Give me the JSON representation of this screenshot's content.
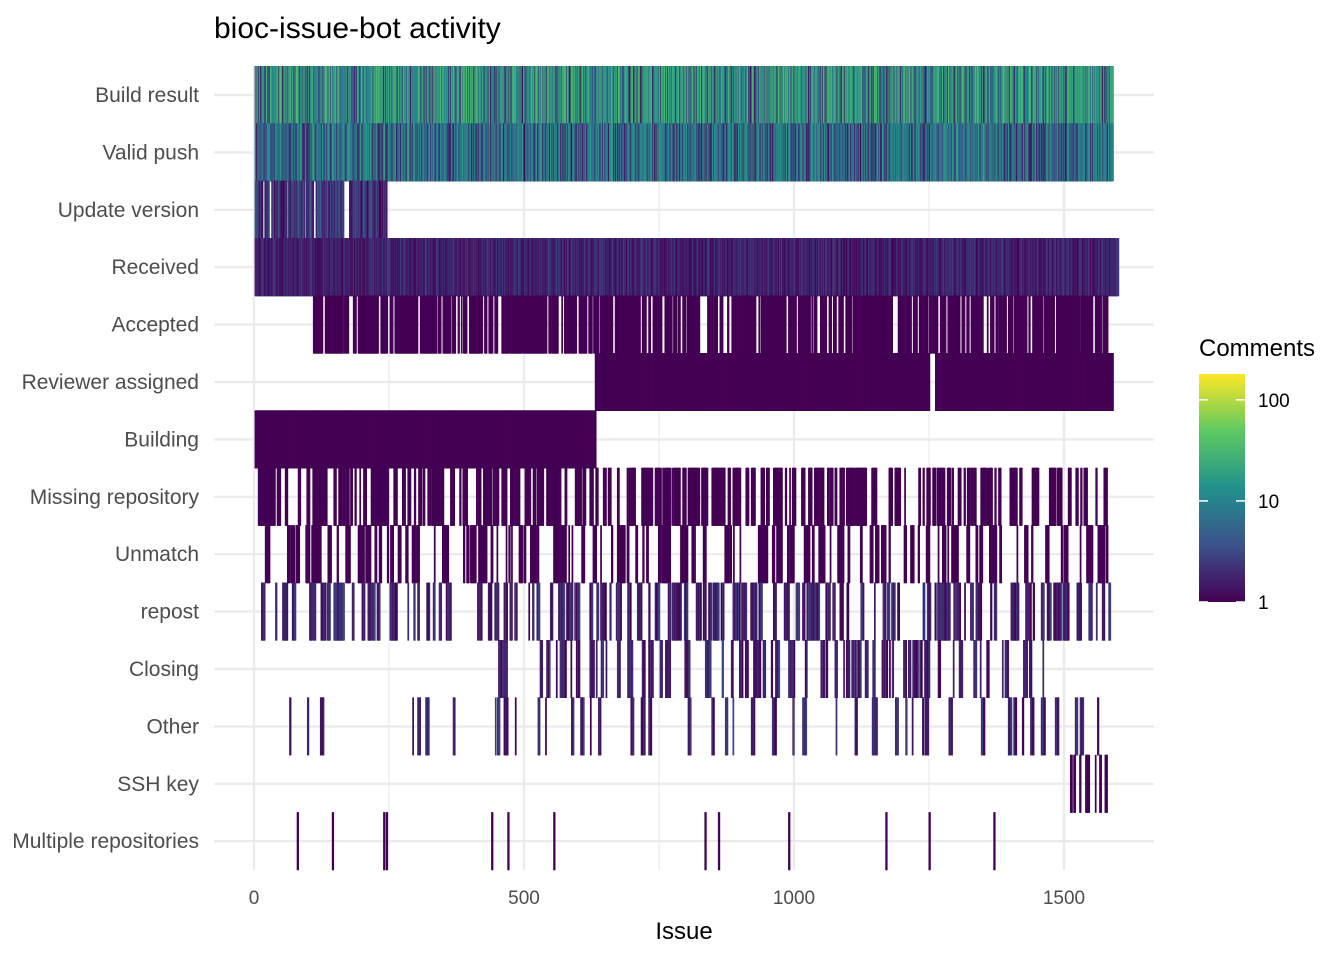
{
  "chart_data": {
    "type": "heatmap",
    "title": "bioc-issue-bot activity",
    "xlabel": "Issue",
    "ylabel": "",
    "xlim": [
      -70,
      1665
    ],
    "x_ticks": [
      0,
      500,
      1000,
      1500
    ],
    "grid": true,
    "legend": {
      "title": "Comments",
      "position": "right",
      "scale": "log10",
      "ticks": [
        1,
        10,
        100
      ],
      "range": [
        1,
        180
      ],
      "palette": [
        "#440154",
        "#3b528b",
        "#21918c",
        "#5ec962",
        "#fde725"
      ]
    },
    "categories": [
      "Build result",
      "Valid push",
      "Update version",
      "Received",
      "Accepted",
      "Reviewer assigned",
      "Building",
      "Missing repository",
      "Unmatch",
      "repost",
      "Closing",
      "Other",
      "SSH key",
      "Multiple repositories"
    ],
    "series": [
      {
        "category": "Build result",
        "segments": [
          [
            2,
            1590
          ]
        ],
        "density": 1.0,
        "comments_max": 40
      },
      {
        "category": "Valid push",
        "segments": [
          [
            2,
            1590
          ]
        ],
        "density": 1.0,
        "comments_max": 20
      },
      {
        "category": "Update version",
        "segments": [
          [
            2,
            245
          ]
        ],
        "density": 0.75,
        "comments_max": 5
      },
      {
        "category": "Received",
        "segments": [
          [
            2,
            1600
          ]
        ],
        "density": 1.0,
        "comments_max": 3
      },
      {
        "category": "Accepted",
        "segments": [
          [
            110,
            1580
          ]
        ],
        "density": 0.7,
        "comments_max": 1
      },
      {
        "category": "Reviewer assigned",
        "segments": [
          [
            632,
            1250
          ],
          [
            1262,
            1590
          ]
        ],
        "density": 1.0,
        "comments_max": 1
      },
      {
        "category": "Building",
        "segments": [
          [
            2,
            632
          ]
        ],
        "density": 1.0,
        "comments_max": 1
      },
      {
        "category": "Missing repository",
        "segments": [
          [
            8,
            1580
          ]
        ],
        "density": 0.45,
        "comments_max": 1
      },
      {
        "category": "Unmatch",
        "segments": [
          [
            15,
            1580
          ]
        ],
        "density": 0.32,
        "comments_max": 1
      },
      {
        "category": "repost",
        "segments": [
          [
            12,
            1585
          ]
        ],
        "density": 0.3,
        "comments_max": 3
      },
      {
        "category": "Closing",
        "segments": [
          [
            450,
            1470
          ]
        ],
        "density": 0.25,
        "comments_max": 3
      },
      {
        "category": "Other",
        "segments": [
          [
            35,
            1580
          ]
        ],
        "density": 0.12,
        "comments_max": 3
      },
      {
        "category": "SSH key",
        "segments": [
          [
            1510,
            1590
          ]
        ],
        "density": 0.6,
        "comments_max": 1
      },
      {
        "category": "Multiple repositories",
        "points": [
          80,
          145,
          240,
          245,
          440,
          470,
          555,
          835,
          860,
          990,
          1170,
          1250,
          1370
        ],
        "comments_max": 1
      }
    ]
  }
}
